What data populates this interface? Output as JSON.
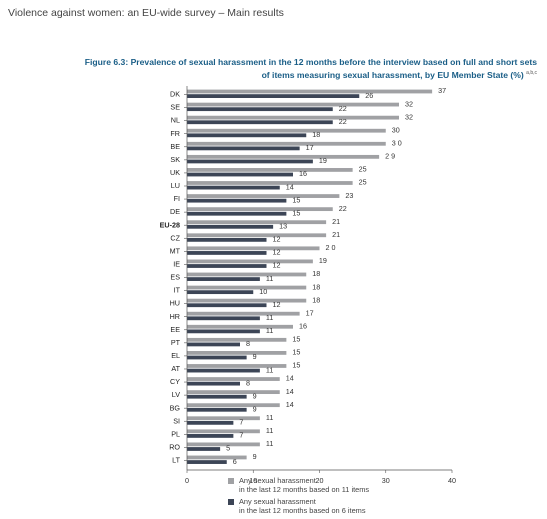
{
  "page": {
    "header": "Violence against women: an EU-wide survey – Main results"
  },
  "figure": {
    "title_line1": "Figure 6.3: Prevalence of sexual harassment in the 12 months before the interview based on full and short sets",
    "title_line2": "of items measuring sexual harassment, by EU Member State (%)",
    "title_sup": "a,b,c"
  },
  "colors": {
    "series_11_items": "#a0a1a4",
    "series_6_items": "#3c4556",
    "axis": "#555555"
  },
  "chart_data": {
    "type": "bar",
    "orientation": "horizontal",
    "categories": [
      "DK",
      "SE",
      "NL",
      "FR",
      "BE",
      "SK",
      "UK",
      "LU",
      "FI",
      "DE",
      "EU-28",
      "CZ",
      "MT",
      "IE",
      "ES",
      "IT",
      "HU",
      "HR",
      "EE",
      "PT",
      "EL",
      "AT",
      "CY",
      "LV",
      "BG",
      "SI",
      "PL",
      "RO",
      "LT"
    ],
    "highlight_category": "EU-28",
    "series": [
      {
        "name": "Any sexual harassment in the last 12 months based on 11 items",
        "values": [
          37,
          32,
          32,
          30,
          30,
          29,
          25,
          25,
          23,
          22,
          21,
          21,
          20,
          19,
          18,
          18,
          18,
          17,
          16,
          15,
          15,
          15,
          14,
          14,
          14,
          11,
          11,
          11,
          9
        ],
        "labels": [
          "37",
          "32",
          "32",
          "30",
          "3 0",
          "2 9",
          "25",
          "25",
          "23",
          "22",
          "21",
          "21",
          "2 0",
          "19",
          "18",
          "18",
          "18",
          "17",
          "16",
          "15",
          "15",
          "15",
          "14",
          "14",
          "14",
          "11",
          "11",
          "11",
          "9"
        ]
      },
      {
        "name": "Any sexual harassment in the last 12 months based on 6 items",
        "values": [
          26,
          22,
          22,
          18,
          17,
          19,
          16,
          14,
          15,
          15,
          13,
          12,
          12,
          12,
          11,
          10,
          12,
          11,
          11,
          8,
          9,
          11,
          8,
          9,
          9,
          7,
          7,
          5,
          6
        ],
        "labels": [
          "26",
          "22",
          "22",
          "18",
          "17",
          "19",
          "16",
          "14",
          "15",
          "15",
          "13",
          "12",
          "12",
          "12",
          "11",
          "10",
          "12",
          "11",
          "11",
          "8",
          "9",
          "11",
          "8",
          "9",
          "9",
          "7",
          "7",
          "5",
          "6"
        ]
      }
    ],
    "xlim": [
      0,
      40
    ],
    "xticks": [
      "0",
      "10",
      "20",
      "30",
      "40"
    ],
    "legend": {
      "placement": "bottom",
      "items": [
        {
          "line1": "Any sexual harassment",
          "line2": "in the last 12 months based on 11 items"
        },
        {
          "line1": "Any sexual harassment",
          "line2": "in the last 12 months based on 6 items"
        }
      ]
    }
  }
}
